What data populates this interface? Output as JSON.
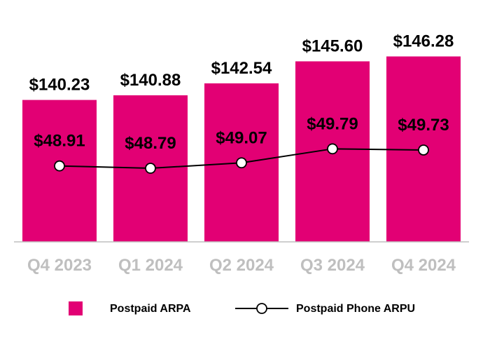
{
  "chart_data": {
    "type": "bar",
    "title": "",
    "xlabel": "",
    "ylabel": "",
    "categories": [
      "Q4 2023",
      "Q1 2024",
      "Q2 2024",
      "Q3 2024",
      "Q4 2024"
    ],
    "series": [
      {
        "name": "Postpaid ARPA",
        "type": "bar",
        "values": [
          140.23,
          140.88,
          142.54,
          145.6,
          146.28
        ],
        "labels": [
          "$140.23",
          "$140.88",
          "$142.54",
          "$145.60",
          "$146.28"
        ],
        "color": "#e20074",
        "ylim": [
          120.5,
          147.5
        ]
      },
      {
        "name": "Postpaid Phone ARPU",
        "type": "line",
        "values": [
          48.91,
          48.79,
          49.07,
          49.79,
          49.73
        ],
        "labels": [
          "$48.91",
          "$48.79",
          "$49.07",
          "$49.79",
          "$49.73"
        ],
        "color": "#000000",
        "ylim": [
          45.0,
          55.0
        ]
      }
    ],
    "grid": false,
    "legend_position": "bottom"
  },
  "colors": {
    "bar": "#e20074",
    "line": "#000000",
    "marker_fill": "#ffffff",
    "axis": "#bfbfbf",
    "tick_text": "#bfbfbf"
  }
}
